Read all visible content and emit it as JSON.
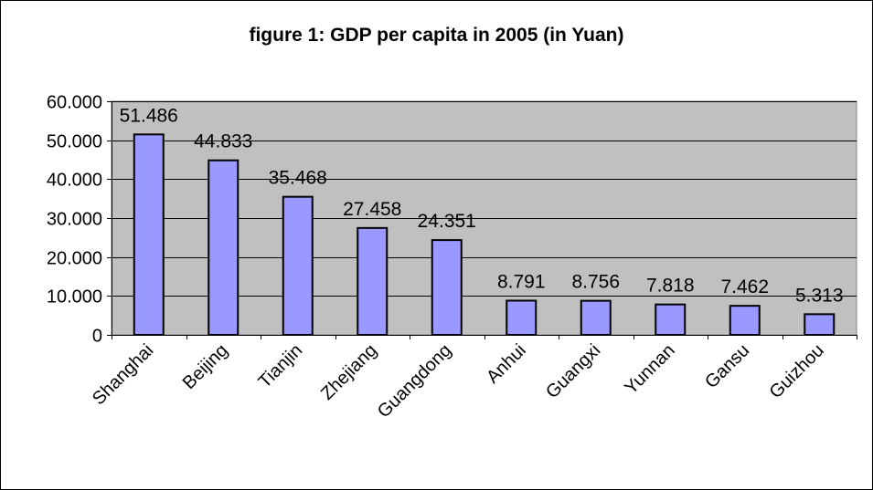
{
  "chart_data": {
    "type": "bar",
    "title": "figure 1: GDP per capita in 2005 (in Yuan)",
    "xlabel": "",
    "ylabel": "",
    "categories": [
      "Shanghai",
      "Beijing",
      "Tianjin",
      "Zhejiang",
      "Guangdong",
      "Anhui",
      "Guangxi",
      "Yunnan",
      "Gansu",
      "Guizhou"
    ],
    "values": [
      51486,
      44833,
      35468,
      27458,
      24351,
      8791,
      8756,
      7818,
      7462,
      5313
    ],
    "value_labels": [
      "51.486",
      "44.833",
      "35.468",
      "27.458",
      "24.351",
      "8.791",
      "8.756",
      "7.818",
      "7.462",
      "5.313"
    ],
    "ylim": [
      0,
      60000
    ],
    "yticks": [
      0,
      10000,
      20000,
      30000,
      40000,
      50000,
      60000
    ],
    "ytick_labels": [
      "0",
      "10.000",
      "20.000",
      "30.000",
      "40.000",
      "50.000",
      "60.000"
    ],
    "grid": true,
    "legend": "none",
    "colors": {
      "bar": "#9999ff",
      "plot_background": "#c0c0c0",
      "gridline": "#000000"
    }
  }
}
